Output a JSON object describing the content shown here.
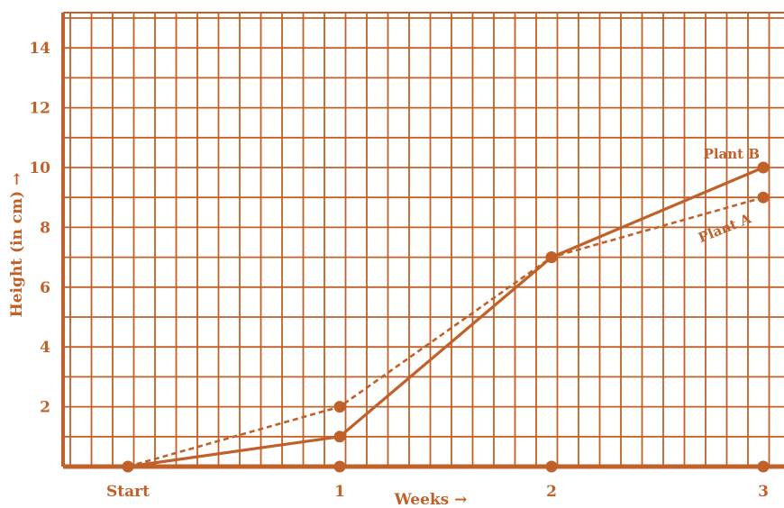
{
  "chart_data": {
    "type": "line",
    "xlabel": "Weeks →",
    "ylabel": "Height (in cm) →",
    "categories": [
      "Start",
      "1",
      "2",
      "3"
    ],
    "ylim": [
      0,
      15
    ],
    "yticks": [
      "2",
      "4",
      "6",
      "8",
      "10",
      "12",
      "14"
    ],
    "grid": true,
    "color": "#c0612a",
    "series": [
      {
        "name": "Plant A",
        "style": "dashed",
        "values": [
          0,
          2,
          7,
          9
        ]
      },
      {
        "name": "Plant B",
        "style": "solid",
        "values": [
          0,
          1,
          7,
          10
        ]
      }
    ]
  }
}
